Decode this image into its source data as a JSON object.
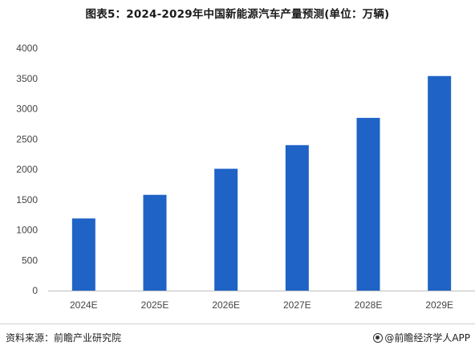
{
  "title": "图表5：2024-2029年中国新能源汽车产量预测(单位：万辆)",
  "source_left": "资料来源：前瞻产业研究院",
  "source_right": "@前瞻经济学人APP",
  "colors": {
    "bar": "#1f63c6",
    "axis": "#bfbfbf",
    "text": "#444444"
  },
  "chart_data": {
    "type": "bar",
    "title": "图表5：2024-2029年中国新能源汽车产量预测(单位：万辆)",
    "categories": [
      "2024E",
      "2025E",
      "2026E",
      "2027E",
      "2028E",
      "2029E"
    ],
    "series": [
      {
        "values": [
          1190,
          1580,
          2010,
          2400,
          2850,
          3540
        ]
      }
    ],
    "ylim": [
      0,
      4000
    ],
    "yticks": [
      0,
      500,
      1000,
      1500,
      2000,
      2500,
      3000,
      3500,
      4000
    ],
    "xlabel": "",
    "ylabel": "",
    "grid": false,
    "legend": "none"
  }
}
